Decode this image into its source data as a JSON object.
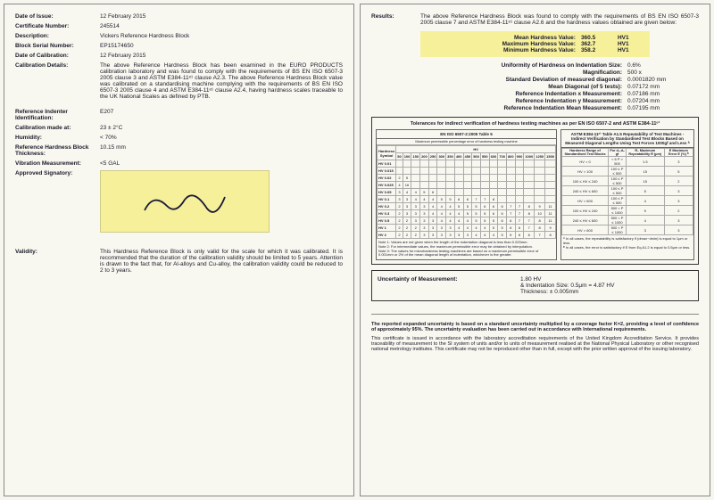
{
  "left": {
    "fields": [
      {
        "label": "Date of Issue:",
        "value": "12 February 2015"
      },
      {
        "label": "Certificate Number:",
        "value": "245514"
      },
      {
        "label": "Description:",
        "value": "Vickers Reference Hardness Block"
      },
      {
        "label": "Block Serial Number:",
        "value": "EP15174650"
      },
      {
        "label": "Date of Calibration:",
        "value": "12 February 2015"
      }
    ],
    "calibration_label": "Calibration Details:",
    "calibration_text": "The above Reference Hardness Block has been examined in the EURO PRODUCTS calibration laboratory and was found to comply with the requirements of BS EN ISO 6507-3 2005 clause 3 and ASTM E384-11ᵉ¹ clause A2.3. The above Reference Hardness Block value was calibrated on a standardising machine complying with the requirements of BS EN ISO 6507-3 2005 clause 4 and ASTM E384-11ᵉ¹ clause A2.4, having hardness scales traceable to the UK National Scales as defined by PTB.",
    "fields2": [
      {
        "label": "Reference Indenter Identification:",
        "value": "E207"
      },
      {
        "label": "Calibration made at:",
        "value": "23 ± 2°C"
      },
      {
        "label": "Humidity:",
        "value": "< 70%"
      },
      {
        "label": "Reference Hardness Block Thickness:",
        "value": "10.15 mm"
      },
      {
        "label": "Vibration Measurement:",
        "value": "<5 GAL"
      }
    ],
    "approved_label": "Approved Signatory:",
    "validity_label": "Validity:",
    "validity_text": "This Hardness Reference Block is only valid for the scale for which it was calibrated. It is recommended that the duration of the calibration validity should be limited to 5 years. Attention is drawn to the fact that, for Al-alloys and Cu-alloy, the calibration validity could be reduced to 2 to 3 years."
  },
  "right": {
    "results_label": "Results:",
    "results_intro": "The above Reference Hardness Block was found to comply with the requirements of BS EN ISO 6507-3 2005 clause 7 and ASTM E384-11ᵉ¹ clause A2.6 and the hardness values obtained are given below:",
    "highlight": [
      {
        "name": "Mean Hardness Value:",
        "val": "360.5",
        "unit": "HV1"
      },
      {
        "name": "Maximum Hardness Value:",
        "val": "362.7",
        "unit": "HV1"
      },
      {
        "name": "Minimum Hardness Value:",
        "val": "358.2",
        "unit": "HV1"
      }
    ],
    "metrics": [
      {
        "name": "Uniformity of Hardness on Indentation Size:",
        "val": "0.6%"
      },
      {
        "name": "Magnification:",
        "val": "500 x"
      },
      {
        "name": "Standard Deviation of measured diagonal:",
        "val": "0.0001820 mm"
      },
      {
        "name": "Mean Diagonal (of 5 tests):",
        "val": "0.07172 mm"
      },
      {
        "name": "Reference Indentation x Measurement:",
        "val": "0.07186 mm"
      },
      {
        "name": "Reference Indentation y Measurement:",
        "val": "0.07204 mm"
      },
      {
        "name": "Reference Indentation Mean Measurement:",
        "val": "0.07195 mm"
      }
    ],
    "tol_title": "Tolerances for indirect verification of hardness testing machines as per EN ISO 6507-2 and ASTM E384-11ᵉ¹",
    "left_table": {
      "title": "EN ISO 6507-2:2005 Table 5",
      "subtitle": "Maximum permissible percentage error of hardness testing machine",
      "row_header": "Hardness Symbol",
      "col_header": "HV",
      "cols": [
        "50",
        "100",
        "150",
        "200",
        "250",
        "300",
        "350",
        "400",
        "450",
        "500",
        "550",
        "600",
        "700",
        "800",
        "900",
        "1000",
        "1250",
        "1500"
      ],
      "rows": [
        {
          "sym": "HV 0.01",
          "v": [
            "",
            ""
          ]
        },
        {
          "sym": "HV 0.015",
          "v": [
            ""
          ]
        },
        {
          "sym": "HV 0.02",
          "v": [
            "2",
            "5"
          ]
        },
        {
          "sym": "HV 0.025",
          "v": [
            "4",
            "16"
          ]
        },
        {
          "sym": "HV 0.05",
          "v": [
            "3",
            "4",
            "4",
            "5",
            "6"
          ]
        },
        {
          "sym": "HV 0.1",
          "v": [
            "3",
            "3",
            "4",
            "4",
            "4",
            "5",
            "5",
            "6",
            "6",
            "7",
            "7",
            "8"
          ]
        },
        {
          "sym": "HV 0.2",
          "v": [
            "2",
            "3",
            "3",
            "3",
            "4",
            "4",
            "4",
            "5",
            "5",
            "5",
            "6",
            "6",
            "6",
            "7",
            "7",
            "8",
            "9",
            "11"
          ]
        },
        {
          "sym": "HV 0.3",
          "v": [
            "2",
            "3",
            "3",
            "3",
            "4",
            "4",
            "4",
            "4",
            "5",
            "5",
            "5",
            "6",
            "6",
            "7",
            "7",
            "8",
            "10",
            "11"
          ]
        },
        {
          "sym": "HV 0.5",
          "v": [
            "2",
            "2",
            "3",
            "3",
            "3",
            "4",
            "4",
            "4",
            "4",
            "5",
            "5",
            "5",
            "6",
            "6",
            "7",
            "7",
            "8",
            "11"
          ]
        },
        {
          "sym": "HV 1",
          "v": [
            "2",
            "2",
            "2",
            "3",
            "3",
            "3",
            "3",
            "4",
            "4",
            "4",
            "4",
            "5",
            "5",
            "6",
            "6",
            "7",
            "8",
            "9"
          ]
        },
        {
          "sym": "HV 2",
          "v": [
            "2",
            "2",
            "2",
            "3",
            "3",
            "3",
            "3",
            "3",
            "3",
            "4",
            "4",
            "4",
            "5",
            "5",
            "6",
            "6",
            "7",
            "8"
          ]
        }
      ],
      "notes": "Note 1: Values are not given when the length of the indentation diagonal is less than 0.020mm.\nNote 2: For intermediate values, the maximum permissible error may be obtained by interpolation.\nNote 3: The values for microhardness testing machines are based on a maximum permissible error of 0.001mm or 2% of the mean diagonal length of indentation, whichever is the greater."
    },
    "right_table": {
      "title": "ASTM E384-11ᵉ¹ Table A1.5 Repeatability of Test Machines - Indirect Verification by Standardised Test Blocks Based on Measured Diagonal Lengths Using Test Forces 1000gf and Less ᴬ",
      "hdr": [
        "Hardness Range of Standardised Test Blocks",
        "For d₁-d₅ gf",
        "R₁ Maximum Repeatability R (μm)",
        "E Maximum Error E (%) ᴮ"
      ],
      "rows": [
        [
          "HV > 0",
          "< 6 P > 500",
          "1.5",
          "3"
        ],
        [
          "HV > 100",
          "100 ≤ P ≤ 500",
          "15",
          "5"
        ],
        [
          "100 ≤ HV ≤ 240",
          "100 ≤ P ≤ 500",
          "15",
          "2"
        ],
        [
          "240 ≤ HV ≤ 600",
          "100 ≤ P ≤ 500",
          "5",
          "3"
        ],
        [
          "HV > 600",
          "100 ≤ P ≤ 500",
          "4",
          "3"
        ],
        [
          "100 ≤ HV ≤ 240",
          "500 < P ≤ 1000",
          "9",
          "2"
        ],
        [
          "240 ≤ HV ≤ 600",
          "500 < P ≤ 1000",
          "4",
          "3"
        ],
        [
          "HV > 600",
          "500 < P ≤ 1000",
          "3",
          "3"
        ]
      ],
      "footnote": "ᴬ In all cases, the repeatability is satisfactory if (dmax−dmin) is equal to 1μm or less.\nᴮ In all cases, the error is satisfactory if E from Eq A1.2 is equal to 0.5μm or less."
    },
    "uom": {
      "label": "Uncertainty of Measurement:",
      "lines": [
        "1.80 HV",
        "& Indentation Size: 0.5μm = 4.87 HV",
        "Thickness: ± 0.005mm"
      ]
    },
    "disclaimer_bold": "The reported expanded uncertainty is based on a standard uncertainty multiplied by a coverage factor K=2, providing a level of confidence of approximately 95%. The uncertainty evaluation has been carried out in accordance with International requirements.",
    "disclaimer": "This certificate is issued in accordance with the laboratory accreditation requirements of the United Kingdom Accreditation Service. It provides traceability of measurement to the SI system of units and/or to units of measurement realised at the National Physical Laboratory or other recognised national metrology institutes. This certificate may not be reproduced other than in full, except with the prior written approval of the issuing laboratory."
  },
  "colors": {
    "highlight": "#f7f09a",
    "border": "#333333"
  }
}
